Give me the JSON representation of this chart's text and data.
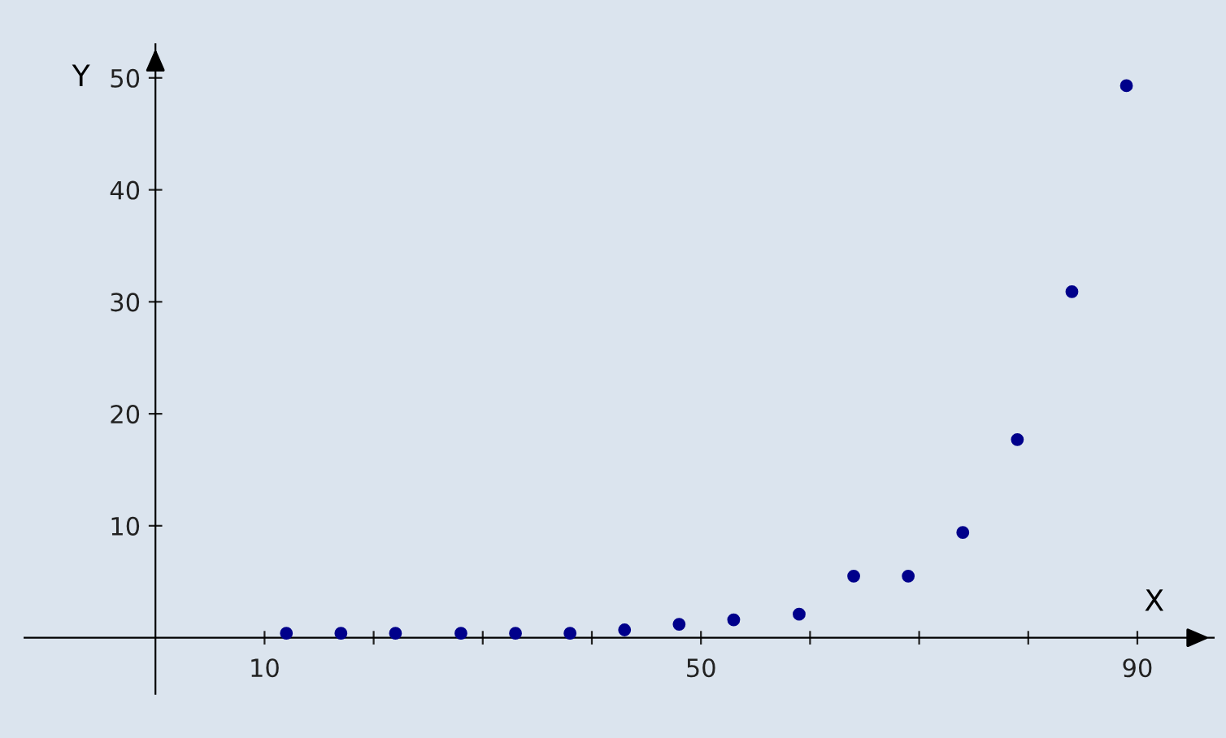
{
  "chart_data": {
    "type": "scatter",
    "xlabel": "X",
    "ylabel": "Y",
    "x": [
      12,
      17,
      22,
      28,
      33,
      38,
      43,
      48,
      53,
      59,
      64,
      69,
      74,
      79,
      84,
      89
    ],
    "series": [
      {
        "color": "#00008b",
        "values": [
          0.4,
          0.4,
          0.4,
          0.4,
          0.4,
          0.4,
          0.7,
          1.2,
          1.6,
          2.1,
          5.5,
          5.5,
          9.4,
          17.7,
          30.9,
          49.3
        ]
      }
    ],
    "marker": "circle",
    "grid": false,
    "legend": false,
    "xlim": [
      -12,
      97
    ],
    "ylim": [
      -5,
      53
    ],
    "xticks": [
      10,
      {
        "value": 20,
        "label": null
      },
      {
        "value": 30,
        "label": null
      },
      {
        "value": 40,
        "label": null
      },
      50,
      {
        "value": 60,
        "label": null
      },
      {
        "value": 70,
        "label": null
      },
      {
        "value": 80,
        "label": null
      },
      90
    ],
    "yticks": [
      10,
      20,
      30,
      40,
      50
    ]
  }
}
